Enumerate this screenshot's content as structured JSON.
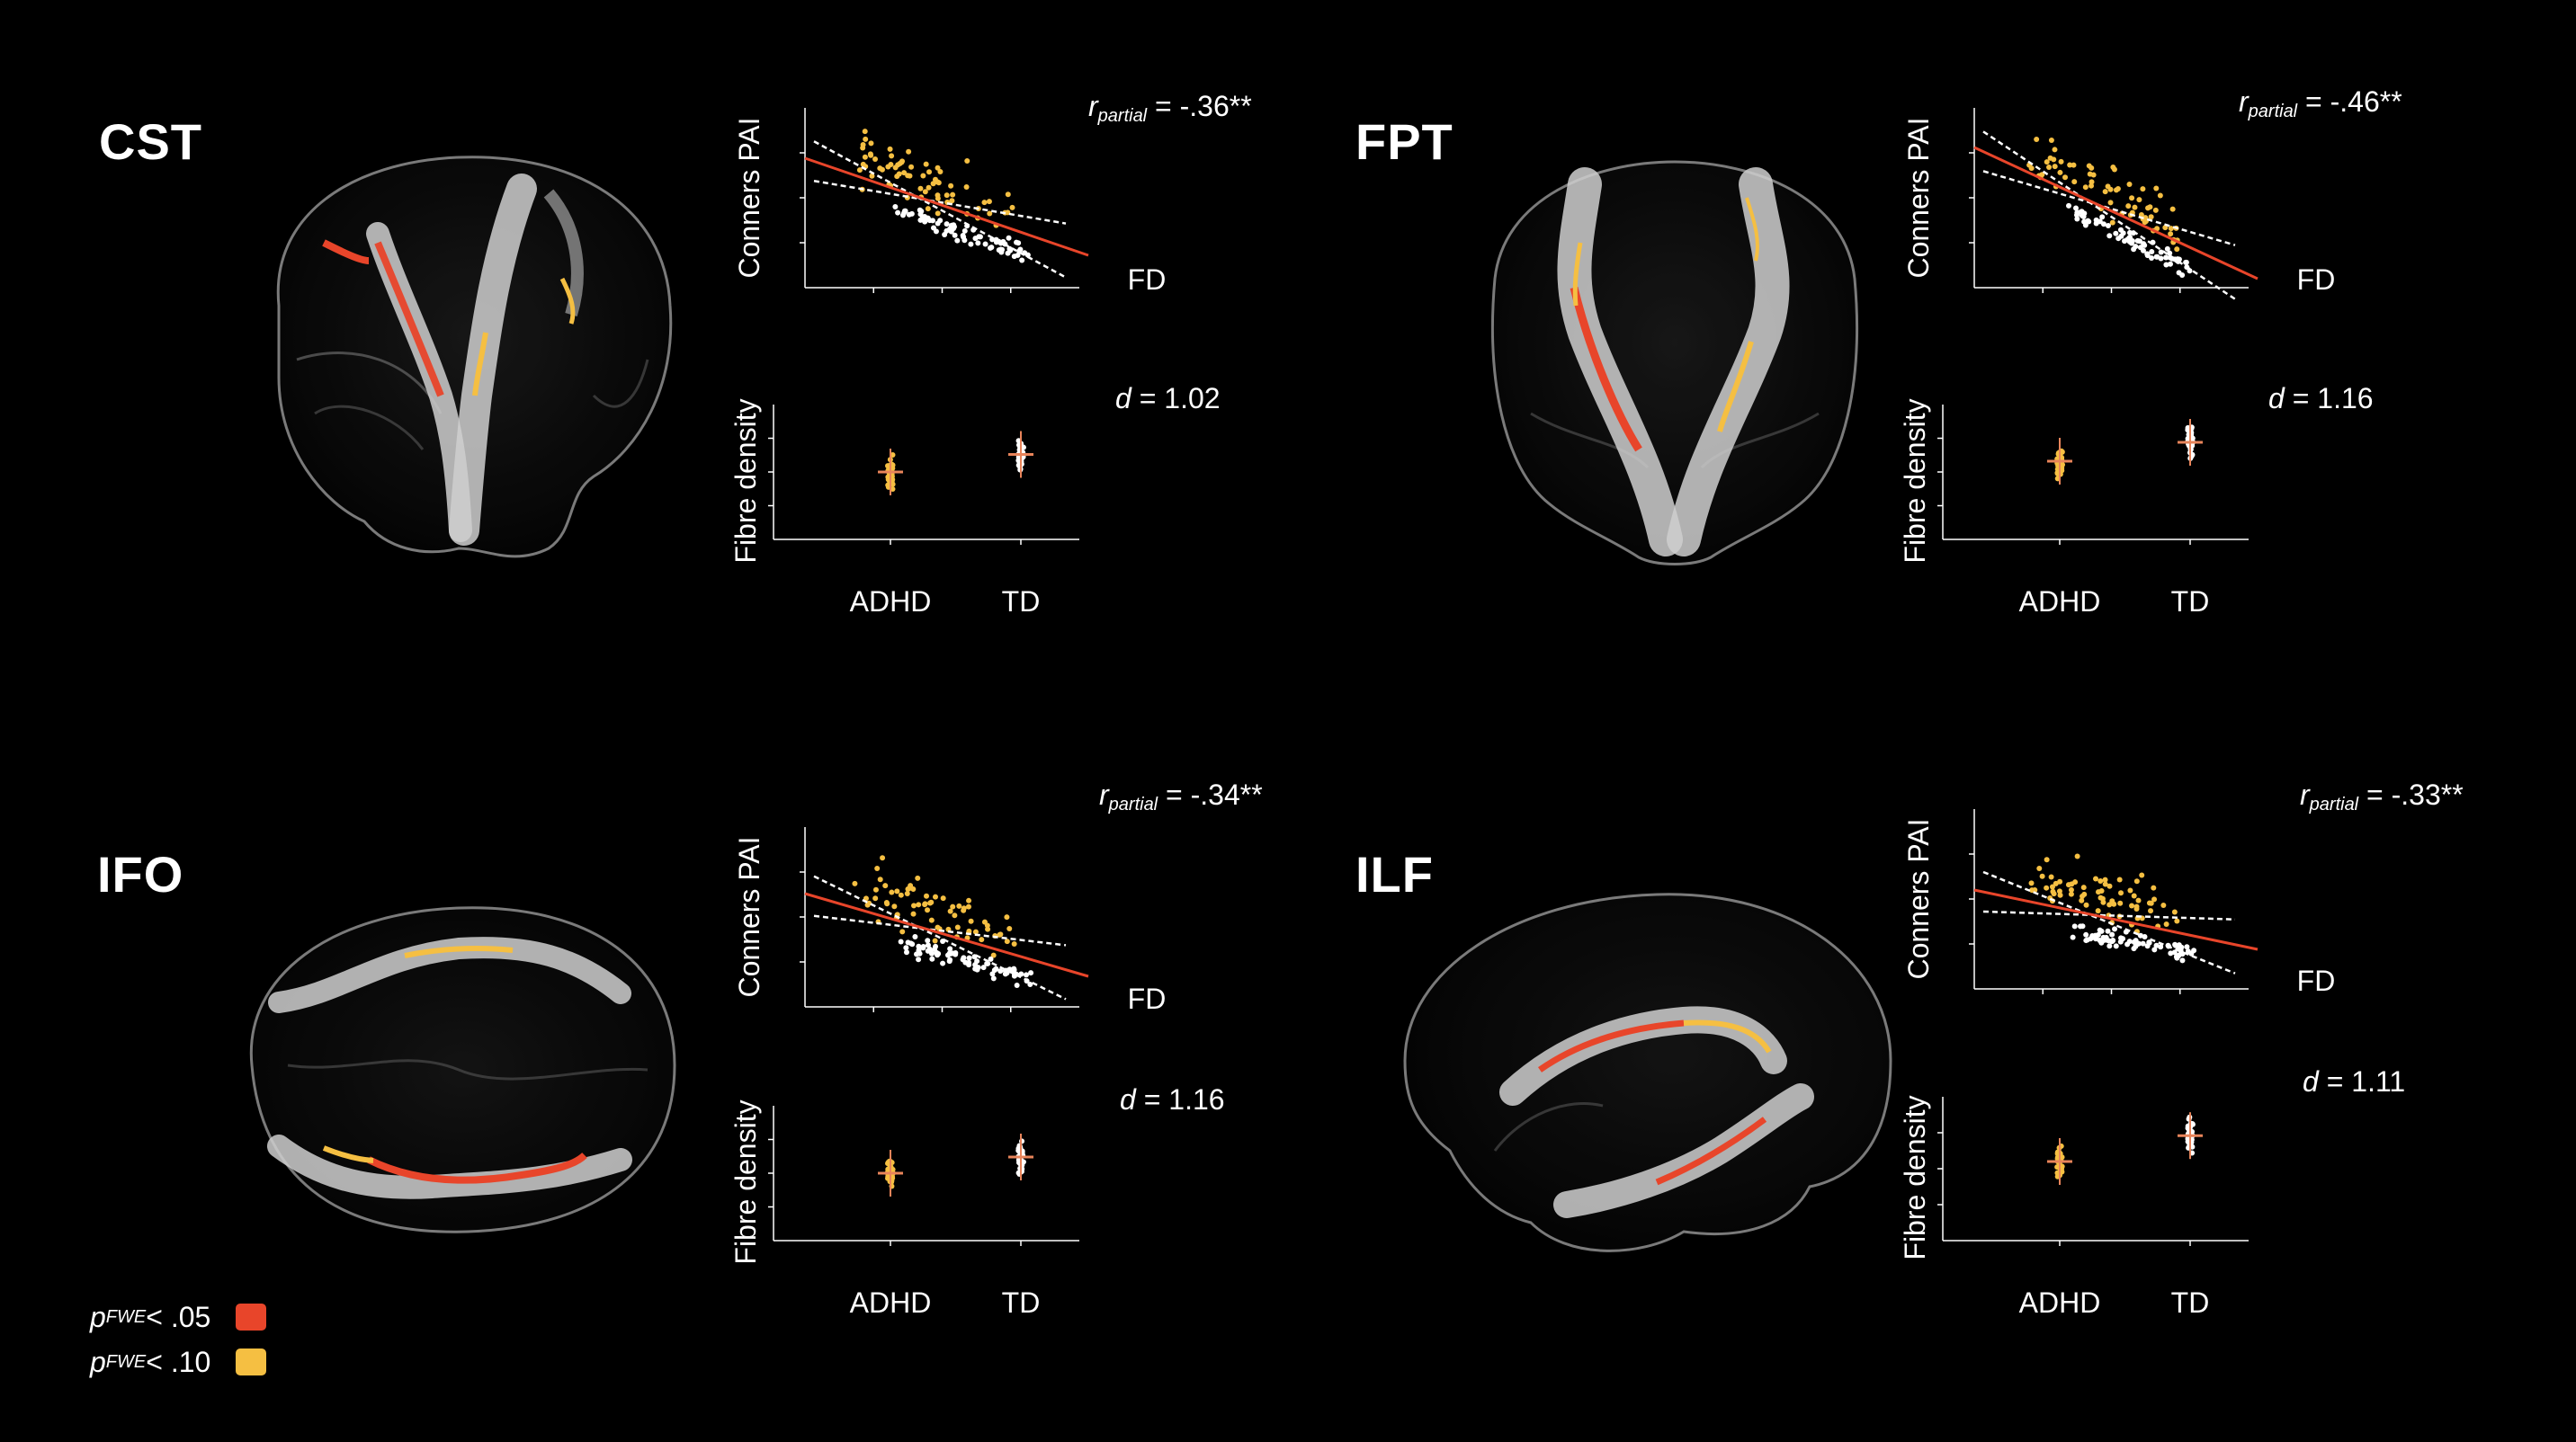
{
  "colors": {
    "background": "#000000",
    "pfwe05": "#e8452a",
    "pfwe10": "#f5bf42",
    "adhd": "#f5bf42",
    "td": "#ffffff",
    "regression": "#e8452a",
    "ci": "#ffffff",
    "mean_marker": "#e8845a"
  },
  "legend": {
    "items": [
      {
        "p": "p",
        "sub": "FWE",
        "text": " < .05",
        "color": "#e8452a"
      },
      {
        "p": "p",
        "sub": "FWE",
        "text": " < .10",
        "color": "#f5bf42"
      }
    ]
  },
  "panels": [
    {
      "id": "cst",
      "title": "CST",
      "brain_view": "coronal-oblique",
      "scatter": {
        "ylabel": "Conners PAI",
        "xlabel": "FD",
        "r_symbol": "r",
        "r_sub": "partial",
        "r_value": " = -.36**",
        "fit": {
          "from": [
            0.0,
            0.72
          ],
          "to": [
            1.0,
            0.18
          ]
        }
      },
      "group": {
        "ylabel": "Fibre density",
        "categories": [
          "ADHD",
          "TD"
        ],
        "d_symbol": "d",
        "d_value": " = 1.02",
        "means": [
          0.5,
          0.63
        ]
      }
    },
    {
      "id": "fpt",
      "title": "FPT",
      "brain_view": "coronal",
      "scatter": {
        "ylabel": "Conners PAI",
        "xlabel": "FD",
        "r_symbol": "r",
        "r_sub": "partial",
        "r_value": " = -.46**",
        "fit": {
          "from": [
            0.0,
            0.78
          ],
          "to": [
            1.0,
            0.05
          ]
        }
      },
      "group": {
        "ylabel": "Fibre density",
        "categories": [
          "ADHD",
          "TD"
        ],
        "d_symbol": "d",
        "d_value": " = 1.16",
        "means": [
          0.58,
          0.72
        ]
      }
    },
    {
      "id": "ifo",
      "title": "IFO",
      "brain_view": "axial",
      "scatter": {
        "ylabel": "Conners PAI",
        "xlabel": "FD",
        "r_symbol": "r",
        "r_sub": "partial",
        "r_value": " = -.34**",
        "fit": {
          "from": [
            0.0,
            0.63
          ],
          "to": [
            1.0,
            0.17
          ]
        }
      },
      "group": {
        "ylabel": "Fibre density",
        "categories": [
          "ADHD",
          "TD"
        ],
        "d_symbol": "d",
        "d_value": " = 1.16",
        "means": [
          0.5,
          0.62
        ]
      }
    },
    {
      "id": "ilf",
      "title": "ILF",
      "brain_view": "sagittal",
      "scatter": {
        "ylabel": "Conners PAI",
        "xlabel": "FD",
        "r_symbol": "r",
        "r_sub": "partial",
        "r_value": " = -.33**",
        "fit": {
          "from": [
            0.0,
            0.55
          ],
          "to": [
            1.0,
            0.22
          ]
        }
      },
      "group": {
        "ylabel": "Fibre density",
        "categories": [
          "ADHD",
          "TD"
        ],
        "d_symbol": "d",
        "d_value": " = 1.11",
        "means": [
          0.55,
          0.73
        ]
      }
    }
  ]
}
